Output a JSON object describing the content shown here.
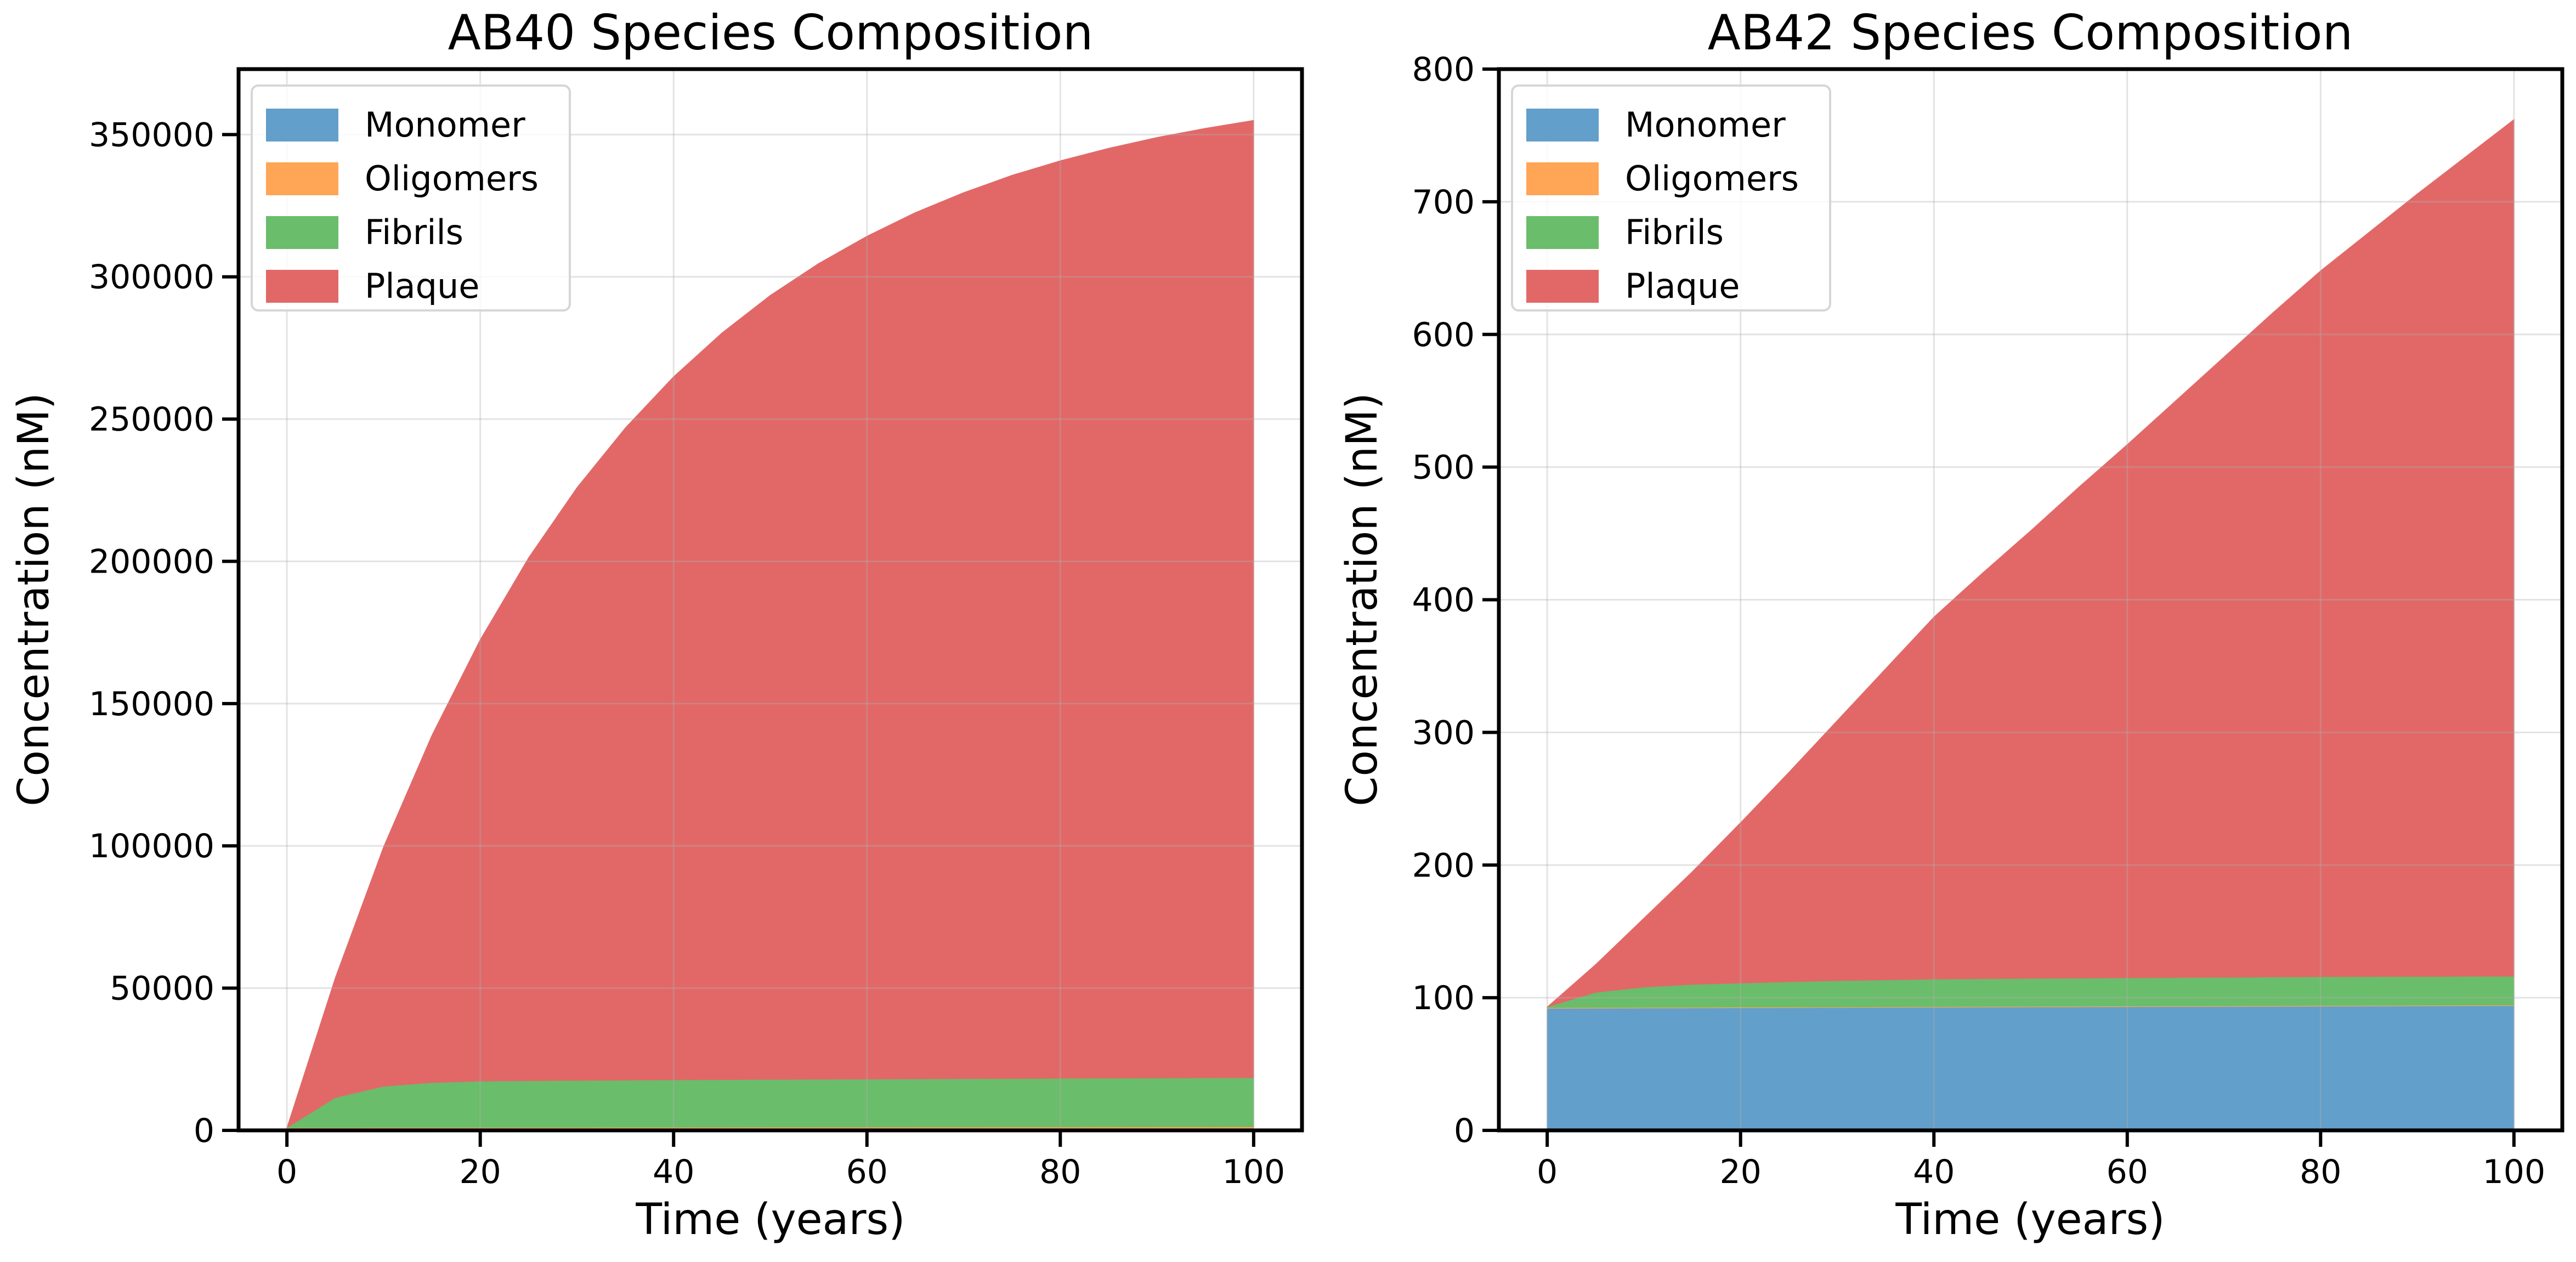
{
  "chart_data": [
    {
      "type": "area",
      "stacked": true,
      "title": "AB40 Species Composition",
      "xlabel": "Time (years)",
      "ylabel": "Concentration (nM)",
      "xlim": [
        -5,
        105
      ],
      "ylim": [
        0,
        373000
      ],
      "xticks": [
        0,
        20,
        40,
        60,
        80,
        100
      ],
      "yticks": [
        0,
        50000,
        100000,
        150000,
        200000,
        250000,
        300000,
        350000
      ],
      "grid": true,
      "legend_position": "top-left",
      "x": [
        0,
        5,
        10,
        15,
        20,
        25,
        30,
        35,
        40,
        45,
        50,
        55,
        60,
        65,
        70,
        75,
        80,
        85,
        90,
        95,
        100
      ],
      "series": [
        {
          "name": "Monomer",
          "color": "#629fcb",
          "values": [
            50,
            50,
            50,
            50,
            50,
            50,
            50,
            50,
            50,
            50,
            50,
            50,
            50,
            50,
            50,
            50,
            50,
            50,
            50,
            50,
            50
          ]
        },
        {
          "name": "Oligomers",
          "color": "#ffa556",
          "values": [
            900,
            915,
            930,
            945,
            960,
            975,
            990,
            1005,
            1020,
            1035,
            1050,
            1065,
            1080,
            1095,
            1110,
            1125,
            1140,
            1155,
            1170,
            1185,
            1200
          ]
        },
        {
          "name": "Fibrils",
          "color": "#6abd6a",
          "values": [
            0,
            10535,
            14520,
            15805,
            16290,
            16425,
            16510,
            16595,
            16680,
            16715,
            16800,
            16835,
            16870,
            16955,
            16990,
            17025,
            17110,
            17145,
            17180,
            17215,
            17250
          ]
        },
        {
          "name": "Plaque",
          "color": "#e26868",
          "values": [
            0,
            42100,
            84200,
            122100,
            155200,
            183850,
            208350,
            229250,
            247150,
            262500,
            275600,
            286750,
            296300,
            304500,
            311450,
            317500,
            322500,
            326850,
            330600,
            333750,
            336500
          ]
        }
      ]
    },
    {
      "type": "area",
      "stacked": true,
      "title": "AB42 Species Composition",
      "xlabel": "Time (years)",
      "ylabel": "Concentration (nM)",
      "xlim": [
        -5,
        105
      ],
      "ylim": [
        0,
        800
      ],
      "xticks": [
        0,
        20,
        40,
        60,
        80,
        100
      ],
      "yticks": [
        0,
        100,
        200,
        300,
        400,
        500,
        600,
        700,
        800
      ],
      "grid": true,
      "legend_position": "top-left",
      "x": [
        0,
        5,
        10,
        15,
        20,
        25,
        30,
        35,
        40,
        45,
        50,
        55,
        60,
        65,
        70,
        75,
        80,
        85,
        90,
        95,
        100
      ],
      "series": [
        {
          "name": "Monomer",
          "color": "#629fcb",
          "values": [
            92,
            92.1,
            92.2,
            92.3,
            92.4,
            92.5,
            92.6,
            92.7,
            92.8,
            92.9,
            93,
            93.1,
            93.2,
            93.3,
            93.4,
            93.5,
            93.6,
            93.7,
            93.8,
            93.9,
            94
          ]
        },
        {
          "name": "Oligomers",
          "color": "#ffa556",
          "values": [
            0.5,
            0.5,
            0.5,
            0.5,
            0.5,
            0.5,
            0.5,
            0.5,
            0.5,
            0.5,
            0.5,
            0.5,
            0.5,
            0.5,
            0.5,
            0.5,
            0.5,
            0.5,
            0.5,
            0.5,
            0.5
          ]
        },
        {
          "name": "Fibrils",
          "color": "#6abd6a",
          "values": [
            0.5,
            11.4,
            15.3,
            17.2,
            18.1,
            19,
            19.7,
            20.2,
            20.7,
            20.9,
            21.1,
            21.2,
            21.3,
            21.4,
            21.5,
            21.6,
            21.7,
            21.7,
            21.7,
            21.7,
            21.7
          ]
        },
        {
          "name": "Plaque",
          "color": "#e26868",
          "values": [
            0,
            21,
            52,
            85,
            121,
            158,
            196.2,
            234.6,
            273,
            305.7,
            337.4,
            370.2,
            402,
            434.8,
            467.6,
            500.4,
            532.2,
            561.1,
            590,
            617.9,
            645.8
          ]
        }
      ]
    }
  ]
}
